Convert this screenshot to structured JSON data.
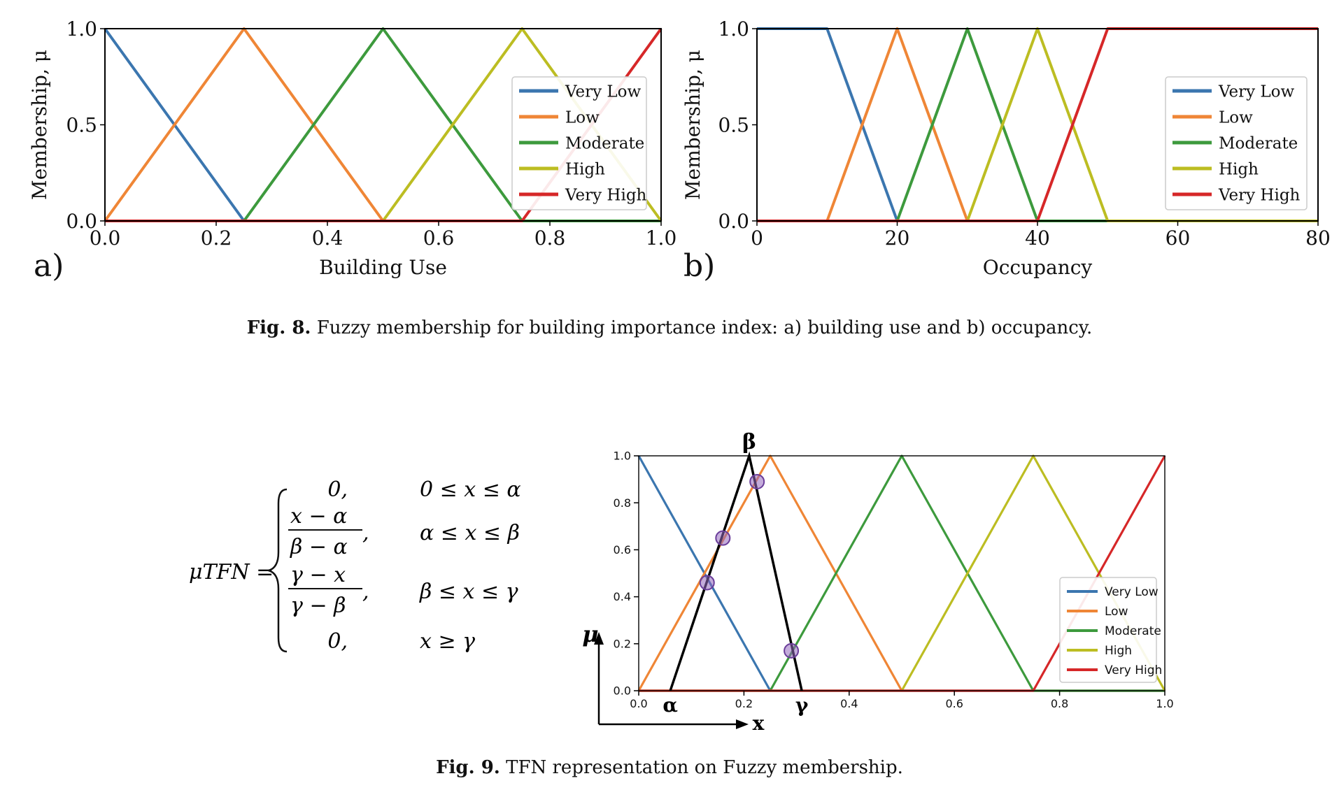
{
  "figure8": {
    "caption_label": "Fig. 8.",
    "caption_text": "Fuzzy membership for building importance index: a) building use and b) occupancy."
  },
  "figure9": {
    "caption_label": "Fig. 9.",
    "caption_text": "TFN representation on Fuzzy membership.",
    "equation": {
      "lhs": "μTFN =",
      "cases": [
        {
          "value": "0,",
          "condition": "0 ≤ x ≤ α"
        },
        {
          "numerator": "x − α",
          "denominator": "β − α",
          "condition": "α ≤ x ≤ β"
        },
        {
          "numerator": "γ − x",
          "denominator": "γ − β",
          "condition": "β ≤ x ≤ γ"
        },
        {
          "value": "0,",
          "condition": "x ≥ γ"
        }
      ]
    },
    "annotations": {
      "alpha": "α",
      "beta": "β",
      "gamma": "γ",
      "mu": "μ",
      "x": "x"
    }
  },
  "colors": {
    "very_low": "#3b76af",
    "low": "#ef8636",
    "moderate": "#3d9a3d",
    "high": "#bcbd22",
    "very_high": "#d62728",
    "tfn": "#000000",
    "marker": "#9467bd"
  },
  "chart_data": [
    {
      "type": "line",
      "panel_label": "a)",
      "xlabel": "Building Use",
      "ylabel": "Membership, μ",
      "xlim": [
        0,
        1
      ],
      "ylim": [
        0,
        1
      ],
      "xticks": [
        "0.0",
        "0.2",
        "0.4",
        "0.6",
        "0.8",
        "1.0"
      ],
      "yticks": [
        "0.0",
        "0.5",
        "1.0"
      ],
      "legend": "upper-right",
      "series": [
        {
          "name": "Very Low",
          "x": [
            0,
            0.25,
            1
          ],
          "y": [
            1,
            0,
            0
          ]
        },
        {
          "name": "Low",
          "x": [
            0,
            0.25,
            0.5,
            1
          ],
          "y": [
            0,
            1,
            0,
            0
          ]
        },
        {
          "name": "Moderate",
          "x": [
            0,
            0.25,
            0.5,
            0.75,
            1
          ],
          "y": [
            0,
            0,
            1,
            0,
            0
          ]
        },
        {
          "name": "High",
          "x": [
            0,
            0.5,
            0.75,
            1
          ],
          "y": [
            0,
            0,
            1,
            0
          ]
        },
        {
          "name": "Very High",
          "x": [
            0,
            0.75,
            1
          ],
          "y": [
            0,
            0,
            1
          ]
        }
      ]
    },
    {
      "type": "line",
      "panel_label": "b)",
      "xlabel": "Occupancy",
      "ylabel": "Membership, μ",
      "xlim": [
        0,
        80
      ],
      "ylim": [
        0,
        1
      ],
      "xticks": [
        "0",
        "20",
        "40",
        "60",
        "80"
      ],
      "yticks": [
        "0.0",
        "0.5",
        "1.0"
      ],
      "legend": "right",
      "series": [
        {
          "name": "Very Low",
          "x": [
            0,
            10,
            20,
            80
          ],
          "y": [
            1,
            1,
            0,
            0
          ]
        },
        {
          "name": "Low",
          "x": [
            0,
            10,
            20,
            30,
            80
          ],
          "y": [
            0,
            0,
            1,
            0,
            0
          ]
        },
        {
          "name": "Moderate",
          "x": [
            0,
            20,
            30,
            40,
            80
          ],
          "y": [
            0,
            0,
            1,
            0,
            0
          ]
        },
        {
          "name": "High",
          "x": [
            0,
            30,
            40,
            50,
            80
          ],
          "y": [
            0,
            0,
            1,
            0,
            0
          ]
        },
        {
          "name": "Very High",
          "x": [
            0,
            40,
            50,
            80
          ],
          "y": [
            0,
            0,
            1,
            1
          ]
        }
      ]
    },
    {
      "type": "line",
      "panel_label": "",
      "xlabel": "",
      "ylabel": "",
      "xlim": [
        0,
        1
      ],
      "ylim": [
        0,
        1
      ],
      "xticks": [
        "0.0",
        "0.2",
        "0.4",
        "0.6",
        "0.8",
        "1.0"
      ],
      "yticks": [
        "0.0",
        "0.2",
        "0.4",
        "0.6",
        "0.8",
        "1.0"
      ],
      "legend": "lower-right",
      "series": [
        {
          "name": "Very Low",
          "x": [
            0,
            0.25,
            1
          ],
          "y": [
            1,
            0,
            0
          ]
        },
        {
          "name": "Low",
          "x": [
            0,
            0.25,
            0.5,
            1
          ],
          "y": [
            0,
            1,
            0,
            0
          ]
        },
        {
          "name": "Moderate",
          "x": [
            0,
            0.25,
            0.5,
            0.75,
            1
          ],
          "y": [
            0,
            0,
            1,
            0,
            0
          ]
        },
        {
          "name": "High",
          "x": [
            0,
            0.5,
            0.75,
            1
          ],
          "y": [
            0,
            0,
            1,
            0
          ]
        },
        {
          "name": "Very High",
          "x": [
            0,
            0.75,
            1
          ],
          "y": [
            0,
            0,
            1
          ]
        }
      ],
      "tfn": {
        "x": [
          0.06,
          0.21,
          0.31
        ],
        "y": [
          0,
          1,
          0
        ]
      },
      "tfn_points": [
        {
          "x": 0.13,
          "y": 0.46
        },
        {
          "x": 0.16,
          "y": 0.65
        },
        {
          "x": 0.225,
          "y": 0.89
        },
        {
          "x": 0.29,
          "y": 0.17
        }
      ]
    }
  ]
}
